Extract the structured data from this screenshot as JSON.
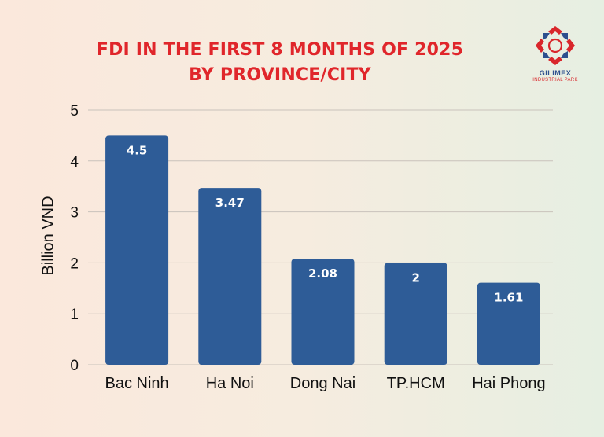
{
  "chart_data": {
    "type": "bar",
    "title": "FDI IN THE FIRST 8 MONTHS OF 2025",
    "subtitle": "BY PROVINCE/CITY",
    "xlabel": "",
    "ylabel": "Billion VND",
    "categories": [
      "Bac Ninh",
      "Ha Noi",
      "Dong Nai",
      "TP.HCM",
      "Hai Phong"
    ],
    "values": [
      4.5,
      3.47,
      2.08,
      2,
      1.61
    ],
    "value_labels": [
      "4.5",
      "3.47",
      "2.08",
      "2",
      "1.61"
    ],
    "ylim": [
      0,
      5
    ],
    "yticks": [
      "0",
      "1",
      "2",
      "3",
      "4",
      "5"
    ],
    "grid": true,
    "legend": "none"
  },
  "logo": {
    "name": "GILIMEX",
    "subtitle": "INDUSTRIAL PARK"
  },
  "colors": {
    "bar": "#2e5c97",
    "title": "#e0262b",
    "grid": "#c9c2bb",
    "logo_blue": "#2d4f8e",
    "logo_red": "#d9262b"
  }
}
